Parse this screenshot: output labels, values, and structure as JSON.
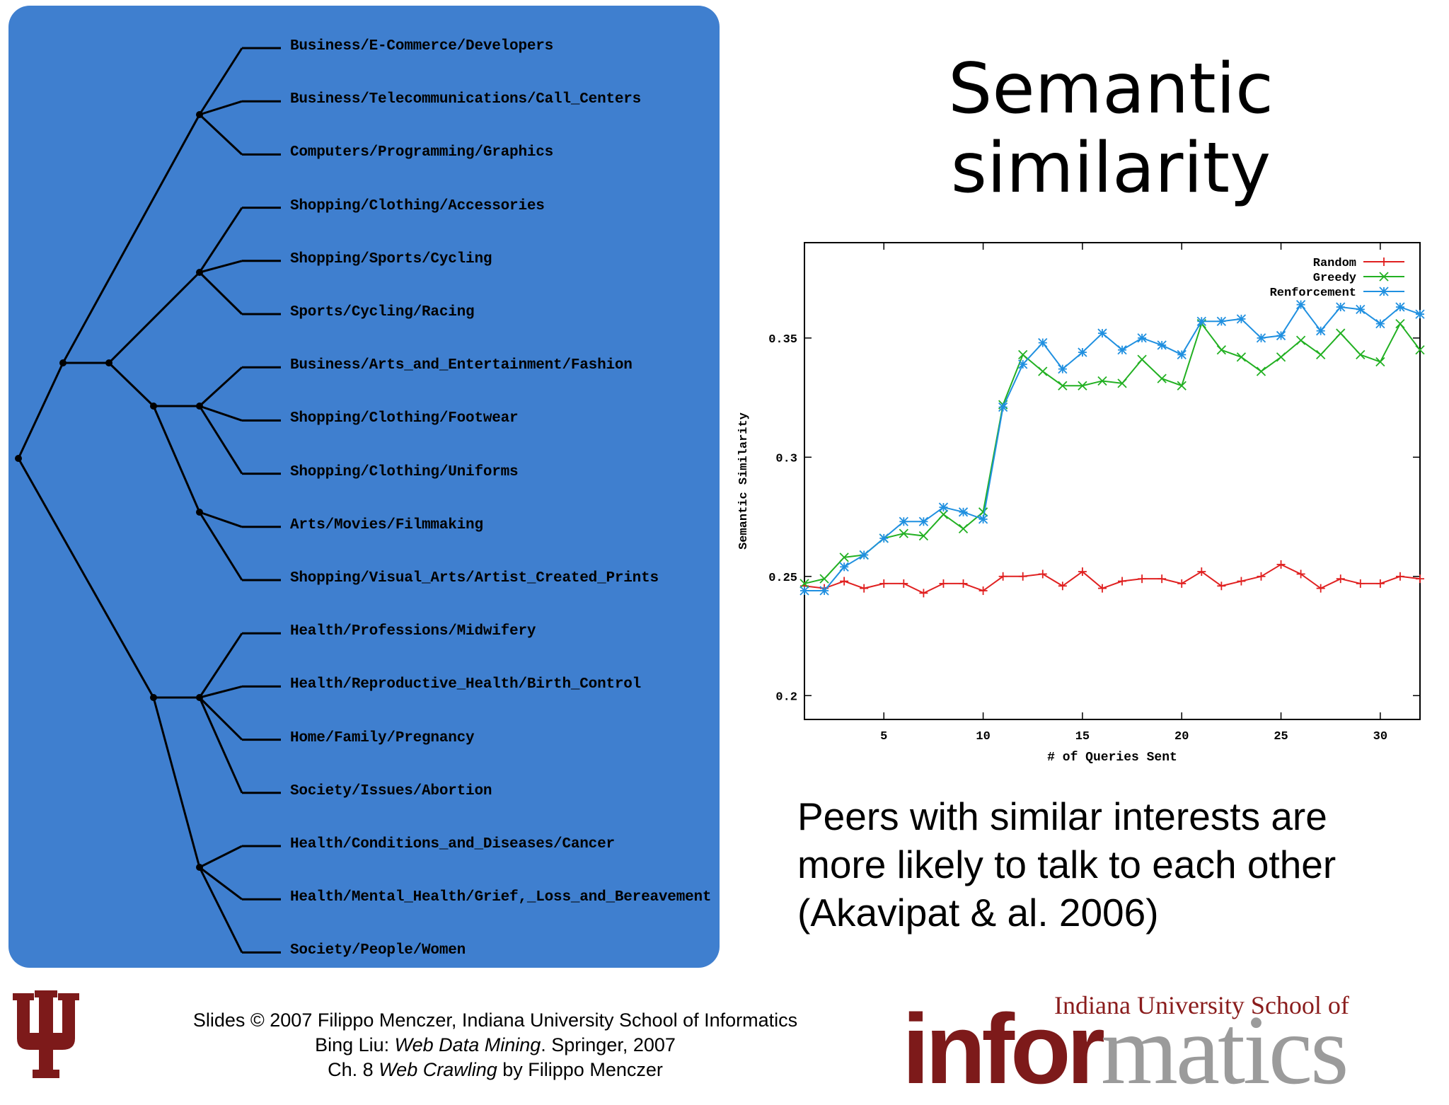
{
  "tree": {
    "leaves": [
      "Business/E-Commerce/Developers",
      "Business/Telecommunications/Call_Centers",
      "Computers/Programming/Graphics",
      "Shopping/Clothing/Accessories",
      "Shopping/Sports/Cycling",
      "Sports/Cycling/Racing",
      "Business/Arts_and_Entertainment/Fashion",
      "Shopping/Clothing/Footwear",
      "Shopping/Clothing/Uniforms",
      "Arts/Movies/Filmmaking",
      "Shopping/Visual_Arts/Artist_Created_Prints",
      "Health/Professions/Midwifery",
      "Health/Reproductive_Health/Birth_Control",
      "Home/Family/Pregnancy",
      "Society/Issues/Abortion",
      "Health/Conditions_and_Diseases/Cancer",
      "Health/Mental_Health/Grief,_Loss_and_Bereavement",
      "Society/People/Women"
    ]
  },
  "title": {
    "line1": "Semantic",
    "line2": "similarity"
  },
  "chart_data": {
    "type": "line",
    "xlabel": "# of Queries Sent",
    "ylabel": "Semantic Similarity",
    "xlim": [
      1,
      32
    ],
    "ylim": [
      0.19,
      0.39
    ],
    "xticks": [
      5,
      10,
      15,
      20,
      25,
      30
    ],
    "yticks": [
      0.2,
      0.25,
      0.3,
      0.35
    ],
    "ytick_labels": [
      "0.2",
      "0.25",
      "0.3",
      "0.35"
    ],
    "legend_position": "top-right",
    "grid": false,
    "x": [
      1,
      2,
      3,
      4,
      5,
      6,
      7,
      8,
      9,
      10,
      11,
      12,
      13,
      14,
      15,
      16,
      17,
      18,
      19,
      20,
      21,
      22,
      23,
      24,
      25,
      26,
      27,
      28,
      29,
      30,
      31,
      32
    ],
    "series": [
      {
        "name": "Random",
        "color": "#e02020",
        "marker": "+",
        "values": [
          0.246,
          0.245,
          0.248,
          0.245,
          0.247,
          0.247,
          0.243,
          0.247,
          0.247,
          0.244,
          0.25,
          0.25,
          0.251,
          0.246,
          0.252,
          0.245,
          0.248,
          0.249,
          0.249,
          0.247,
          0.252,
          0.246,
          0.248,
          0.25,
          0.255,
          0.251,
          0.245,
          0.249,
          0.247,
          0.247,
          0.25,
          0.249
        ]
      },
      {
        "name": "Greedy",
        "color": "#22b022",
        "marker": "x",
        "values": [
          0.247,
          0.249,
          0.258,
          0.259,
          0.266,
          0.268,
          0.267,
          0.276,
          0.27,
          0.277,
          0.322,
          0.343,
          0.336,
          0.33,
          0.33,
          0.332,
          0.331,
          0.341,
          0.333,
          0.33,
          0.356,
          0.345,
          0.342,
          0.336,
          0.342,
          0.349,
          0.343,
          0.352,
          0.343,
          0.34,
          0.356,
          0.345
        ]
      },
      {
        "name": "Renforcement",
        "color": "#2090e0",
        "marker": "*",
        "values": [
          0.244,
          0.244,
          0.254,
          0.259,
          0.266,
          0.273,
          0.273,
          0.279,
          0.277,
          0.274,
          0.321,
          0.339,
          0.348,
          0.337,
          0.344,
          0.352,
          0.345,
          0.35,
          0.347,
          0.343,
          0.357,
          0.357,
          0.358,
          0.35,
          0.351,
          0.364,
          0.353,
          0.363,
          0.362,
          0.356,
          0.363,
          0.36
        ]
      }
    ]
  },
  "caption": {
    "line1": "Peers with similar interests are",
    "line2": "more likely to talk to each other",
    "line3": "(Akavipat & al. 2006)"
  },
  "footer": {
    "line1": "Slides © 2007 Filippo Menczer, Indiana University School of Informatics",
    "line2_pre": "Bing Liu: ",
    "line2_italic": "Web Data Mining",
    "line2_post": ". Springer, 2007",
    "line3_pre": "Ch. 8 ",
    "line3_italic": "Web Crawling",
    "line3_post": " by Filippo Menczer"
  },
  "school_logo": {
    "top_text": "Indiana University School of",
    "word_part1": "infor",
    "word_part2": "matics"
  },
  "colors": {
    "panel": "#3f7fcf",
    "iu_crimson": "#7d1a1a",
    "logo_gray": "#9b9b9b"
  }
}
